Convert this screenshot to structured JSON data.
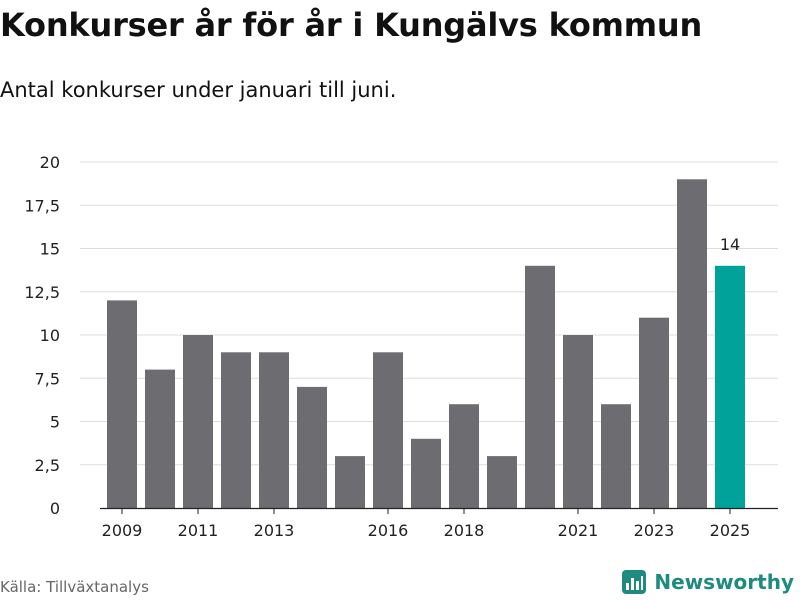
{
  "header": {
    "title": "Konkurser år för år i Kungälvs kommun",
    "subtitle": "Antal konkurser under januari till juni."
  },
  "footer": {
    "source": "Källa: Tillväxtanalys",
    "brand": "Newsworthy",
    "brand_icon": "bar-chart-logo-icon",
    "brand_color": "#1f8a7e"
  },
  "chart_data": {
    "type": "bar",
    "title": "",
    "xlabel": "",
    "ylabel": "",
    "categories": [
      "2009",
      "2010",
      "2011",
      "2012",
      "2013",
      "2014",
      "2015",
      "2016",
      "2017",
      "2018",
      "2019",
      "2020",
      "2021",
      "2022",
      "2023",
      "2024",
      "2025"
    ],
    "values": [
      12,
      8,
      10,
      9,
      9,
      7,
      3,
      9,
      4,
      6,
      3,
      14,
      10,
      6,
      11,
      19,
      14
    ],
    "x_tick_labels": [
      "2009",
      "2011",
      "2013",
      "2016",
      "2018",
      "2021",
      "2023",
      "2025"
    ],
    "y_ticks": [
      0,
      2.5,
      5,
      7.5,
      10,
      12.5,
      15,
      17.5,
      20
    ],
    "y_tick_labels": [
      "0",
      "2,5",
      "5",
      "7,5",
      "10",
      "12,5",
      "15",
      "17,5",
      "20"
    ],
    "ylim": [
      0,
      20
    ],
    "grid": true,
    "highlight": {
      "category": "2025",
      "label": "14"
    },
    "colors": {
      "bar": "#6d6c71",
      "highlight": "#00a29a",
      "grid": "#dddddd",
      "axis": "#222222"
    }
  }
}
